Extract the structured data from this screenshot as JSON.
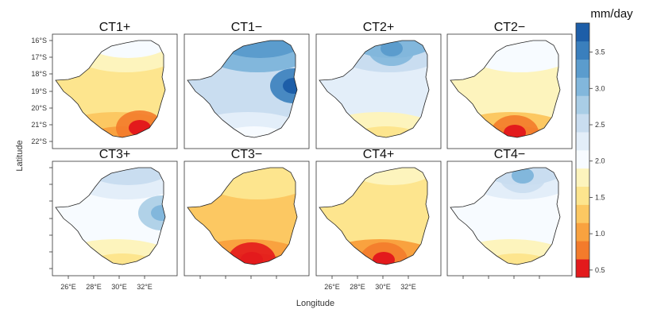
{
  "figure": {
    "panels": [
      {
        "title": "CT1+",
        "map_data": {
          "peak": "south-east",
          "levels_mm_day": {
            "north": 2.0,
            "center": 1.6,
            "south": 1.0
          }
        }
      },
      {
        "title": "CT1−",
        "map_data": {
          "peak": "east",
          "levels_mm_day": {
            "north": 3.2,
            "center": 2.6,
            "south": 2.0
          }
        }
      },
      {
        "title": "CT2+",
        "map_data": {
          "peak": "north",
          "levels_mm_day": {
            "north": 3.0,
            "center": 2.2,
            "south": 1.5
          }
        }
      },
      {
        "title": "CT2−",
        "map_data": {
          "peak": "south",
          "levels_mm_day": {
            "north": 2.1,
            "center": 1.7,
            "south": 1.0
          }
        }
      },
      {
        "title": "CT3+",
        "map_data": {
          "peak": "east",
          "levels_mm_day": {
            "north": 2.5,
            "center": 2.1,
            "south": 1.5
          }
        }
      },
      {
        "title": "CT3−",
        "map_data": {
          "peak": "south",
          "levels_mm_day": {
            "north": 1.6,
            "center": 1.2,
            "south": 0.8
          }
        }
      },
      {
        "title": "CT4+",
        "map_data": {
          "peak": "south",
          "levels_mm_day": {
            "north": 1.8,
            "center": 1.4,
            "south": 0.9
          }
        }
      },
      {
        "title": "CT4−",
        "map_data": {
          "peak": "north",
          "levels_mm_day": {
            "north": 2.6,
            "center": 2.0,
            "south": 1.4
          }
        }
      }
    ],
    "y_ticks": [
      "16°S",
      "17°S",
      "18°S",
      "19°S",
      "20°S",
      "21°S",
      "22°S"
    ],
    "x_ticks": [
      "26°E",
      "28°E",
      "30°E",
      "32°E"
    ],
    "y_label": "Latitude",
    "x_label": "Longitude",
    "colorbar": {
      "unit": "mm/day",
      "ticks": [
        "0.5",
        "1.0",
        "1.5",
        "2.0",
        "2.5",
        "3.0",
        "3.5"
      ],
      "range": [
        0.4,
        3.9
      ],
      "colors": [
        "#e31a1c",
        "#f37b2b",
        "#f9a23f",
        "#fcc862",
        "#fde58e",
        "#fdf4bd",
        "#f7fbff",
        "#e3eef9",
        "#c9ddf0",
        "#a9cde6",
        "#82b7dc",
        "#5b9ccd",
        "#3a7fbd",
        "#1d5ea8"
      ]
    }
  }
}
